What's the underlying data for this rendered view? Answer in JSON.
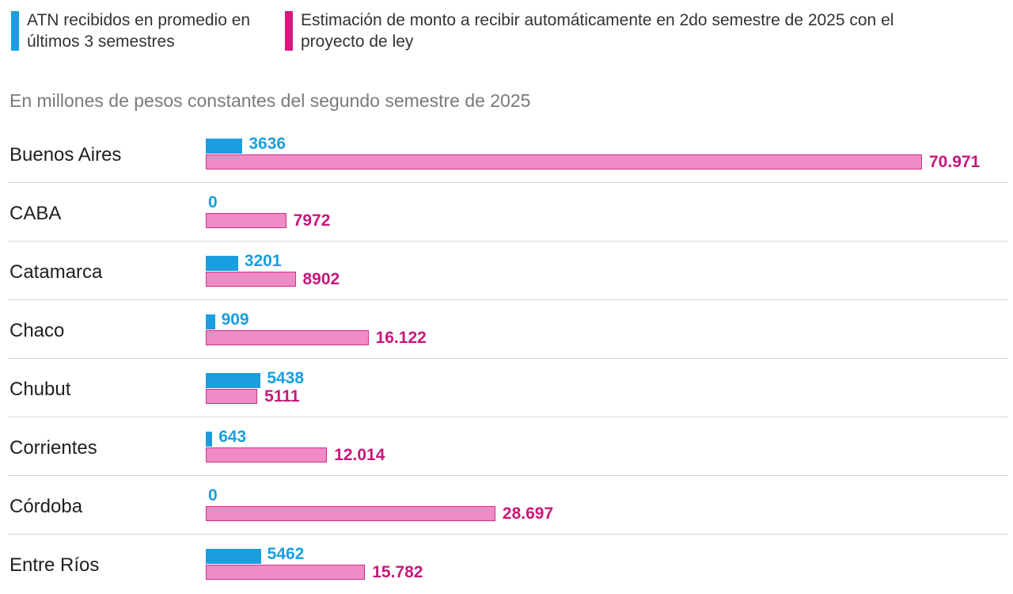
{
  "legend": {
    "atn": "ATN recibidos en promedio en últimos 3 semestres",
    "estimate": "Estimación de monto a recibir automáticamente en 2do semestre de 2025 con el proyecto de ley"
  },
  "colors": {
    "atn": "#1a9ee0",
    "estimate": "#f18bc6",
    "estimate_border": "#cf2d8a",
    "estimate_text": "#c8177c"
  },
  "chart_data": {
    "type": "bar",
    "orientation": "horizontal",
    "subtitle": "En millones de pesos constantes del segundo semestre de 2025",
    "categories": [
      "Buenos Aires",
      "CABA",
      "Catamarca",
      "Chaco",
      "Chubut",
      "Corrientes",
      "Córdoba",
      "Entre Ríos"
    ],
    "series": [
      {
        "name": "ATN recibidos en promedio en últimos 3 semestres",
        "values": [
          3636,
          0,
          3201,
          909,
          5438,
          643,
          0,
          5462
        ],
        "labels": [
          "3636",
          "0",
          "3201",
          "909",
          "5438",
          "643",
          "0",
          "5462"
        ]
      },
      {
        "name": "Estimación de monto a recibir automáticamente en 2do semestre de 2025 con el proyecto de ley",
        "values": [
          70971,
          7972,
          8902,
          16122,
          5111,
          12014,
          28697,
          15782
        ],
        "labels": [
          "70.971",
          "7972",
          "8902",
          "16.122",
          "5111",
          "12.014",
          "28.697",
          "15.782"
        ]
      }
    ],
    "xlim": [
      0,
      70971
    ]
  }
}
